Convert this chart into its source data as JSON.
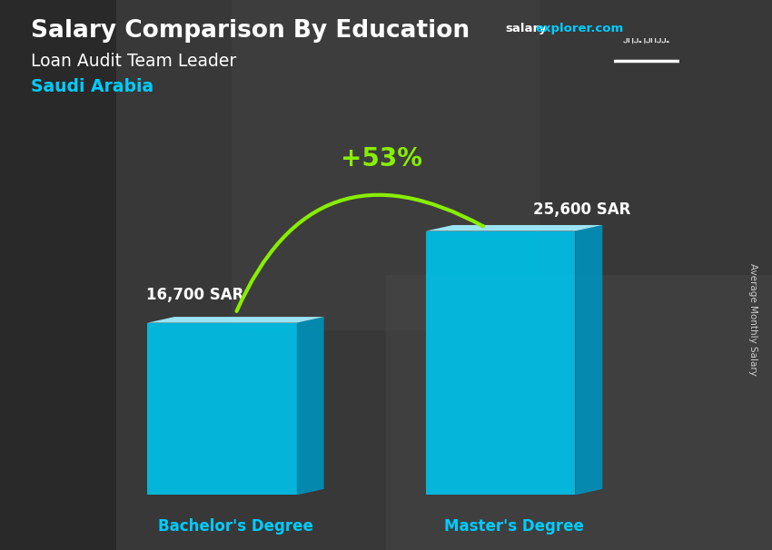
{
  "title_main": "Salary Comparison By Education",
  "subtitle_job": "Loan Audit Team Leader",
  "subtitle_country": "Saudi Arabia",
  "categories": [
    "Bachelor's Degree",
    "Master's Degree"
  ],
  "values": [
    16700,
    25600
  ],
  "value_labels": [
    "16,700 SAR",
    "25,600 SAR"
  ],
  "bar_color_main": "#00c0e8",
  "bar_color_light": "#60ddf5",
  "bar_color_side": "#0090b8",
  "bar_color_top": "#a0eeff",
  "background_color": "#3a3a3a",
  "text_color_white": "#ffffff",
  "text_color_cyan": "#00ccff",
  "text_color_green": "#88ee00",
  "percent_label": "+53%",
  "ylabel": "Average Monthly Salary",
  "ylim": [
    0,
    32000
  ],
  "website_salary_color": "#ffffff",
  "website_explorer_color": "#00ccff",
  "flag_color": "#3cb043"
}
